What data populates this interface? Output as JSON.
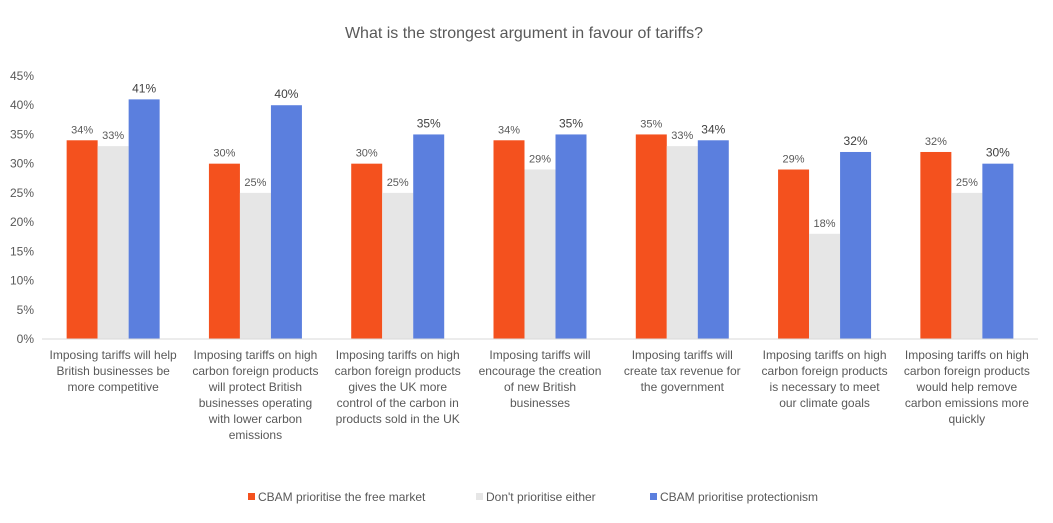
{
  "chart_data": {
    "type": "bar",
    "title": "What is the strongest argument in favour of tariffs?",
    "xlabel": "",
    "ylabel": "",
    "ylim": [
      0,
      45
    ],
    "yticks": [
      "0%",
      "5%",
      "10%",
      "15%",
      "20%",
      "25%",
      "30%",
      "35%",
      "40%",
      "45%"
    ],
    "grid": false,
    "legend_position": "bottom",
    "categories": [
      [
        "Imposing tariffs will help",
        "British businesses be",
        "more competitive"
      ],
      [
        "Imposing tariffs on high",
        "carbon foreign products",
        "will protect British",
        "businesses operating",
        "with lower carbon",
        "emissions"
      ],
      [
        "Imposing tariffs on high",
        "carbon foreign products",
        "gives the UK more",
        "control of the carbon in",
        "products sold in the UK"
      ],
      [
        "Imposing tariffs will",
        "encourage the creation",
        "of new British",
        "businesses"
      ],
      [
        "Imposing tariffs will",
        "create tax revenue for",
        "the government"
      ],
      [
        "Imposing tariffs on high",
        "carbon foreign products",
        "is necessary to meet",
        "our climate goals"
      ],
      [
        "Imposing tariffs on high",
        "carbon foreign products",
        "would help remove",
        "carbon emissions more",
        "quickly"
      ]
    ],
    "series": [
      {
        "name": "CBAM prioritise the free market",
        "color": "#f4511e",
        "values": [
          34,
          30,
          30,
          34,
          35,
          29,
          32
        ],
        "labels": [
          "34%",
          "30%",
          "30%",
          "34%",
          "35%",
          "29%",
          "32%"
        ]
      },
      {
        "name": "Don't prioritise either",
        "color": "#e6e6e6",
        "values": [
          33,
          25,
          25,
          29,
          33,
          18,
          25
        ],
        "labels": [
          "33%",
          "25%",
          "25%",
          "29%",
          "33%",
          "18%",
          "25%"
        ]
      },
      {
        "name": "CBAM prioritise protectionism",
        "color": "#5b7fde",
        "values": [
          41,
          40,
          35,
          35,
          34,
          32,
          30
        ],
        "labels": [
          "41%",
          "40%",
          "35%",
          "35%",
          "34%",
          "32%",
          "30%"
        ]
      }
    ]
  }
}
